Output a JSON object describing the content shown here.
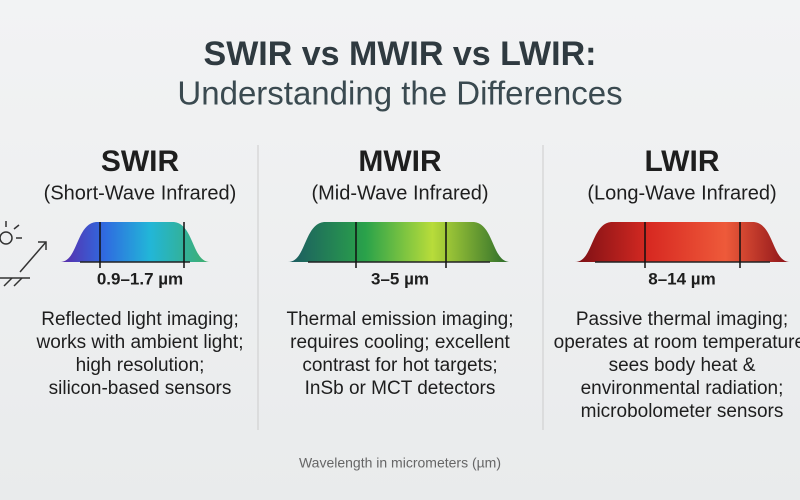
{
  "header": {
    "title": "SWIR vs MWIR vs LWIR:",
    "subtitle": "Understanding the Differences"
  },
  "columns": [
    {
      "name": "SWIR",
      "full_name": "(Short-Wave Infrared)",
      "range": "0.9–1.7 µm",
      "description": [
        "Reflected light imaging;",
        "works with ambient light;",
        "high resolution;",
        "silicon-based sensors"
      ]
    },
    {
      "name": "MWIR",
      "full_name": "(Mid-Wave Infrared)",
      "range": "3–5 µm",
      "description": [
        "Thermal emission imaging;",
        "requires cooling; excellent",
        "contrast for hot targets;",
        "InSb or MCT detectors"
      ]
    },
    {
      "name": "LWIR",
      "full_name": "(Long-Wave Infrared)",
      "range": "8–14 µm",
      "description": [
        "Passive thermal imaging;",
        "operates at room temperature;",
        "sees body heat &",
        "environmental radiation;",
        "microbolometer sensors"
      ]
    }
  ],
  "footer": "Wavelength in micrometers (µm)"
}
